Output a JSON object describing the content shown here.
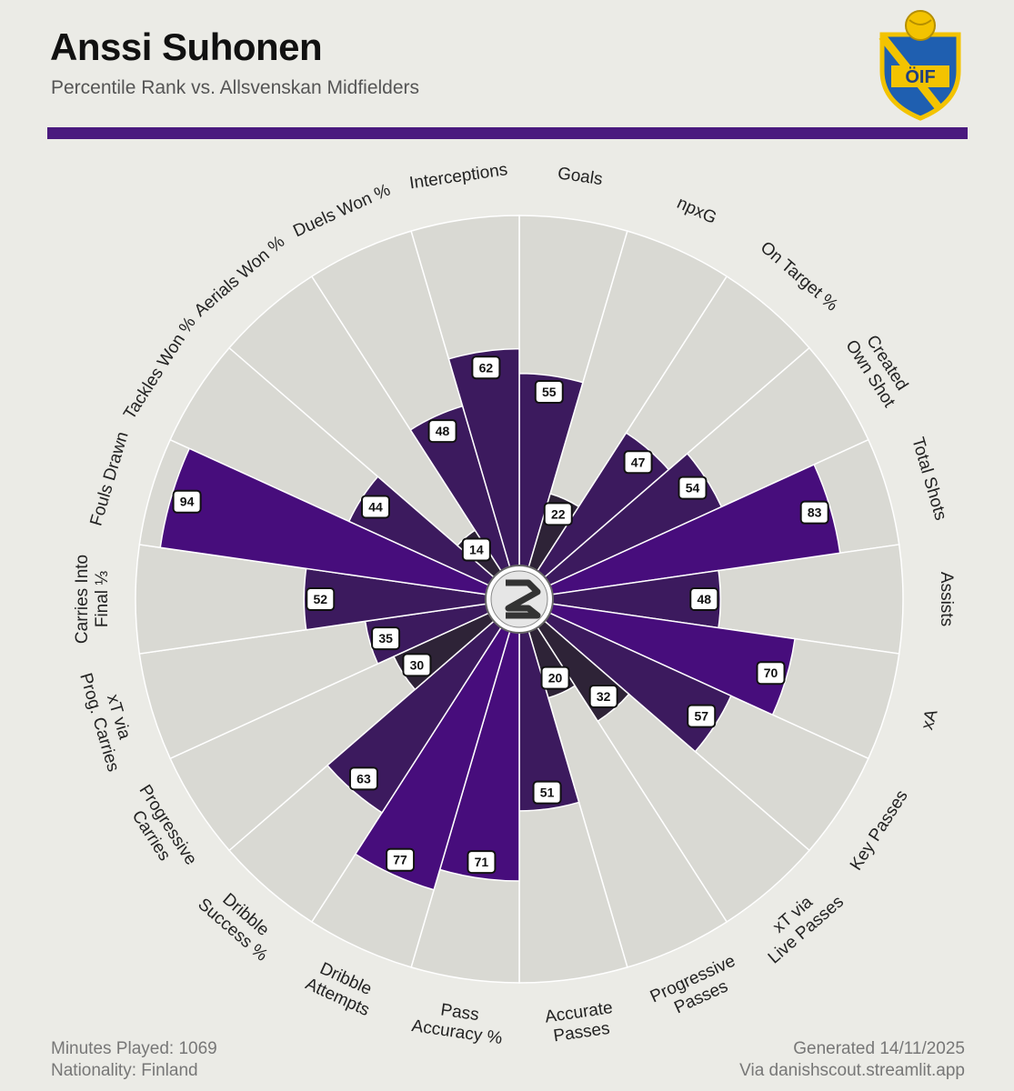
{
  "header": {
    "title": "Anssi Suhonen",
    "subtitle": "Percentile Rank vs. Allsvenskan Midfielders",
    "club_logo": "club-crest-icon",
    "club_logo_text": "ÖIF"
  },
  "footer": {
    "minutes": "Minutes Played: 1069",
    "nationality": "Nationality: Finland",
    "generated": "Generated 14/11/2025",
    "source": "Via danishscout.streamlit.app"
  },
  "center_logo": "ds-logo-icon",
  "colors": {
    "accent": "#4a1a7e",
    "background": "#ebebe6",
    "slice_background": "#d9d9d3",
    "high": "#470d7c",
    "mid": "#3c1a5e",
    "low": "#2e2337"
  },
  "chart_data": {
    "type": "polar-bar",
    "title": "Percentile Rank vs. Allsvenskan Midfielders",
    "rlim": [
      0,
      100
    ],
    "categories": [
      [
        "Goals"
      ],
      [
        "npxG"
      ],
      [
        "On Target %"
      ],
      [
        "Created",
        "Own Shot"
      ],
      [
        "Total Shots"
      ],
      [
        "Assists"
      ],
      [
        "xA"
      ],
      [
        "Key Passes"
      ],
      [
        "xT via",
        "Live Passes"
      ],
      [
        "Progressive",
        "Passes"
      ],
      [
        "Accurate",
        "Passes"
      ],
      [
        "Pass",
        "Accuracy %"
      ],
      [
        "Dribble",
        "Attempts"
      ],
      [
        "Dribble",
        "Success %"
      ],
      [
        "Progressive",
        "Carries"
      ],
      [
        "xT via",
        "Prog. Carries"
      ],
      [
        "Carries Into",
        "Final ⅓"
      ],
      [
        "Fouls Drawn"
      ],
      [
        "Tackles Won %"
      ],
      [
        "Aerials Won %"
      ],
      [
        "Duels Won %"
      ],
      [
        "Interceptions"
      ]
    ],
    "values": [
      55,
      22,
      47,
      54,
      83,
      48,
      70,
      57,
      32,
      20,
      51,
      71,
      77,
      63,
      30,
      35,
      52,
      94,
      44,
      14,
      48,
      62
    ]
  }
}
